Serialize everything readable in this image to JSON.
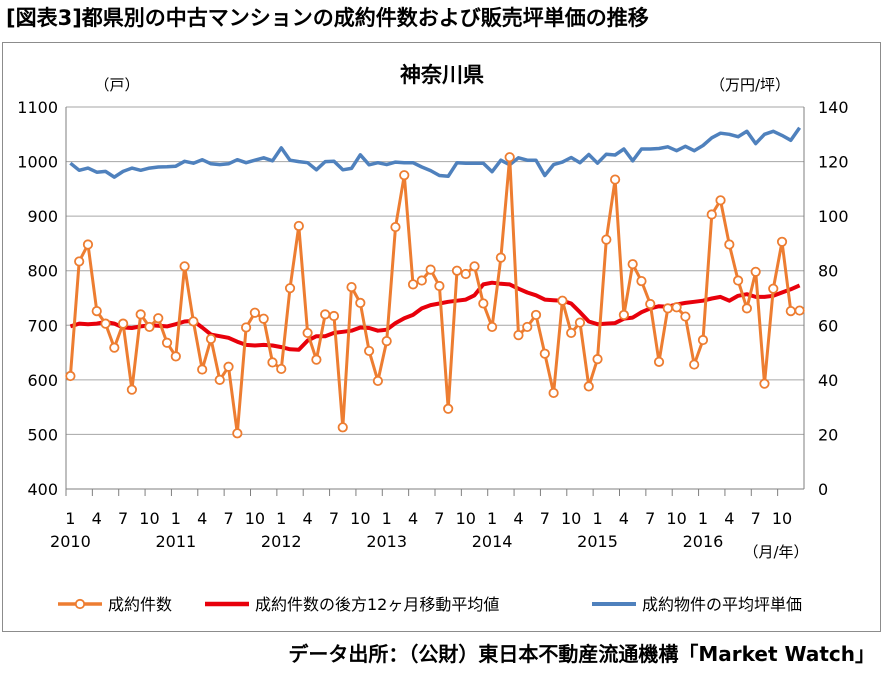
{
  "heading": "[図表3]都県別の中古マンションの成約件数および販売坪単価の推移",
  "source": "データ出所：（公財）東日本不動産流通機構「Market Watch」",
  "chart_data": {
    "type": "line",
    "title": "神奈川県",
    "ylabel_left": "（戸）",
    "ylabel_right": "（万円/坪）",
    "xunit": "（月/年）",
    "ylim_left": [
      400,
      1100
    ],
    "ylim_right": [
      0,
      140
    ],
    "yticks_left": [
      "400",
      "500",
      "600",
      "700",
      "800",
      "900",
      "1000",
      "1100"
    ],
    "yticks_right": [
      "0",
      "20",
      "40",
      "60",
      "80",
      "100",
      "120",
      "140"
    ],
    "grid": true,
    "legend_position": "bottom",
    "x_month_ticks": [
      {
        "i": 0,
        "label": "1"
      },
      {
        "i": 3,
        "label": "4"
      },
      {
        "i": 6,
        "label": "7"
      },
      {
        "i": 9,
        "label": "10"
      },
      {
        "i": 12,
        "label": "1"
      },
      {
        "i": 15,
        "label": "4"
      },
      {
        "i": 18,
        "label": "7"
      },
      {
        "i": 21,
        "label": "10"
      },
      {
        "i": 24,
        "label": "1"
      },
      {
        "i": 27,
        "label": "4"
      },
      {
        "i": 30,
        "label": "7"
      },
      {
        "i": 33,
        "label": "10"
      },
      {
        "i": 36,
        "label": "1"
      },
      {
        "i": 39,
        "label": "4"
      },
      {
        "i": 42,
        "label": "7"
      },
      {
        "i": 45,
        "label": "10"
      },
      {
        "i": 48,
        "label": "1"
      },
      {
        "i": 51,
        "label": "4"
      },
      {
        "i": 54,
        "label": "7"
      },
      {
        "i": 57,
        "label": "10"
      },
      {
        "i": 60,
        "label": "1"
      },
      {
        "i": 63,
        "label": "4"
      },
      {
        "i": 66,
        "label": "7"
      },
      {
        "i": 69,
        "label": "10"
      },
      {
        "i": 72,
        "label": "1"
      },
      {
        "i": 75,
        "label": "4"
      },
      {
        "i": 78,
        "label": "7"
      },
      {
        "i": 81,
        "label": "10"
      }
    ],
    "x_year_labels": [
      {
        "i": 0,
        "label": "2010"
      },
      {
        "i": 12,
        "label": "2011"
      },
      {
        "i": 24,
        "label": "2012"
      },
      {
        "i": 36,
        "label": "2013"
      },
      {
        "i": 48,
        "label": "2014"
      },
      {
        "i": 60,
        "label": "2015"
      },
      {
        "i": 72,
        "label": "2016"
      }
    ],
    "series": [
      {
        "name": "成約件数",
        "axis": "left",
        "color": "#ED7D31",
        "marker": "circle",
        "values": [
          607,
          817,
          848,
          726,
          703,
          659,
          703,
          582,
          720,
          697,
          713,
          668,
          643,
          808,
          707,
          619,
          675,
          600,
          624,
          502,
          696,
          723,
          712,
          632,
          620,
          768,
          882,
          686,
          637,
          720,
          717,
          513,
          770,
          741,
          653,
          598,
          671,
          880,
          975,
          775,
          782,
          802,
          772,
          547,
          800,
          794,
          808,
          740,
          697,
          824,
          1008,
          682,
          697,
          719,
          648,
          576,
          745,
          686,
          705,
          588,
          638,
          857,
          967,
          719,
          812,
          781,
          739,
          633,
          731,
          733,
          716,
          628,
          673,
          903,
          929,
          848,
          782,
          731,
          798,
          593,
          767,
          853,
          726,
          727
        ]
      },
      {
        "name": "成約件数の後方12ヶ月移動平均値",
        "axis": "left",
        "color": "#E8000B",
        "marker": "none",
        "values": [
          698,
          703,
          702,
          703,
          706,
          703,
          696,
          695,
          698,
          700,
          699,
          698,
          702,
          707,
          708,
          696,
          683,
          680,
          677,
          670,
          664,
          663,
          664,
          663,
          660,
          656,
          655,
          672,
          680,
          680,
          686,
          688,
          690,
          696,
          695,
          690,
          692,
          704,
          713,
          719,
          731,
          737,
          740,
          743,
          745,
          747,
          755,
          775,
          778,
          776,
          775,
          767,
          760,
          755,
          747,
          746,
          745,
          740,
          724,
          707,
          702,
          703,
          704,
          712,
          714,
          724,
          731,
          735,
          734,
          738,
          741,
          743,
          745,
          749,
          752,
          745,
          754,
          757,
          752,
          752,
          754,
          760,
          766,
          773
        ]
      },
      {
        "name": "成約物件の平均坪単価",
        "axis": "right",
        "color": "#4F81BD",
        "marker": "none",
        "values": [
          119.4,
          116.8,
          117.6,
          116.1,
          116.4,
          114.3,
          116.4,
          117.6,
          116.8,
          117.6,
          118.0,
          118.1,
          118.3,
          120.1,
          119.4,
          120.7,
          119.2,
          118.9,
          119.2,
          120.7,
          119.6,
          120.5,
          121.4,
          120.3,
          125.0,
          120.5,
          120.0,
          119.6,
          117.0,
          120.0,
          120.1,
          117.0,
          117.5,
          122.5,
          118.8,
          119.6,
          118.9,
          119.8,
          119.6,
          119.6,
          118.0,
          116.7,
          114.9,
          114.6,
          119.6,
          119.4,
          119.4,
          119.4,
          116.3,
          120.5,
          118.8,
          121.4,
          120.5,
          120.5,
          114.9,
          118.9,
          119.8,
          121.5,
          119.6,
          122.6,
          119.4,
          122.7,
          122.4,
          124.6,
          120.3,
          124.6,
          124.6,
          124.8,
          125.4,
          124.0,
          125.6,
          124.0,
          125.9,
          128.7,
          130.4,
          130.0,
          129.1,
          131.1,
          126.6,
          130.0,
          131.1,
          129.6,
          127.8,
          132.4
        ]
      }
    ]
  }
}
